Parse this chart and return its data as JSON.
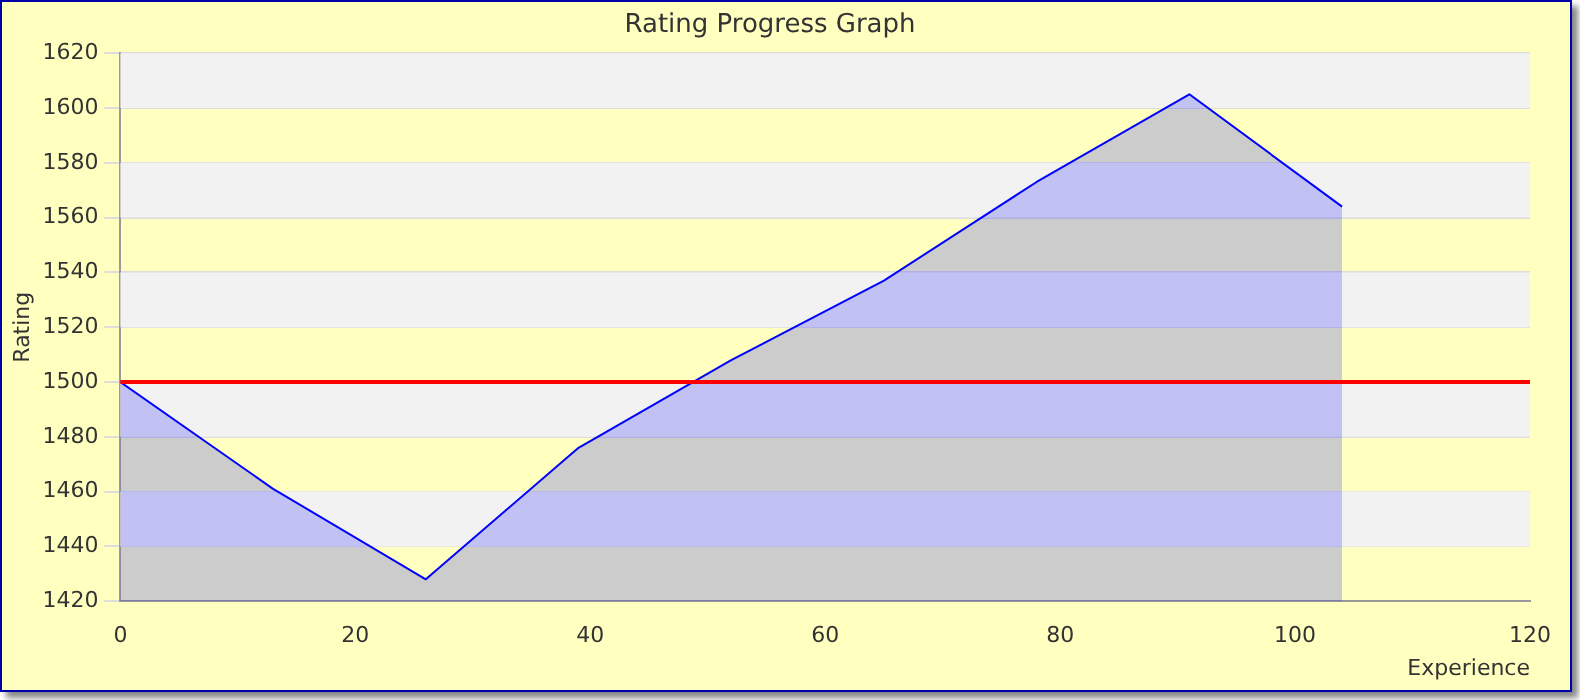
{
  "chart_data": {
    "type": "area",
    "title": "Rating Progress Graph",
    "xlabel": "Experience",
    "ylabel": "Rating",
    "x": [
      0,
      13,
      26,
      39,
      52,
      65,
      78,
      91,
      104
    ],
    "series": [
      {
        "color": "#0000ff",
        "values": [
          1500,
          1461,
          1428,
          1476,
          1508,
          1537,
          1573,
          1605,
          1564
        ]
      }
    ],
    "xlim": [
      0,
      120
    ],
    "xticks": [
      0,
      20,
      40,
      60,
      80,
      100,
      120
    ],
    "ylim": [
      1420,
      1620
    ],
    "yticks": [
      1420,
      1440,
      1460,
      1480,
      1500,
      1520,
      1540,
      1560,
      1580,
      1600,
      1620
    ],
    "ref_lines": [
      {
        "axis": "y",
        "value": 1500,
        "color": "#ff0000"
      }
    ],
    "grid": "y",
    "legend": false,
    "marker": "none",
    "line_style": "solid"
  }
}
